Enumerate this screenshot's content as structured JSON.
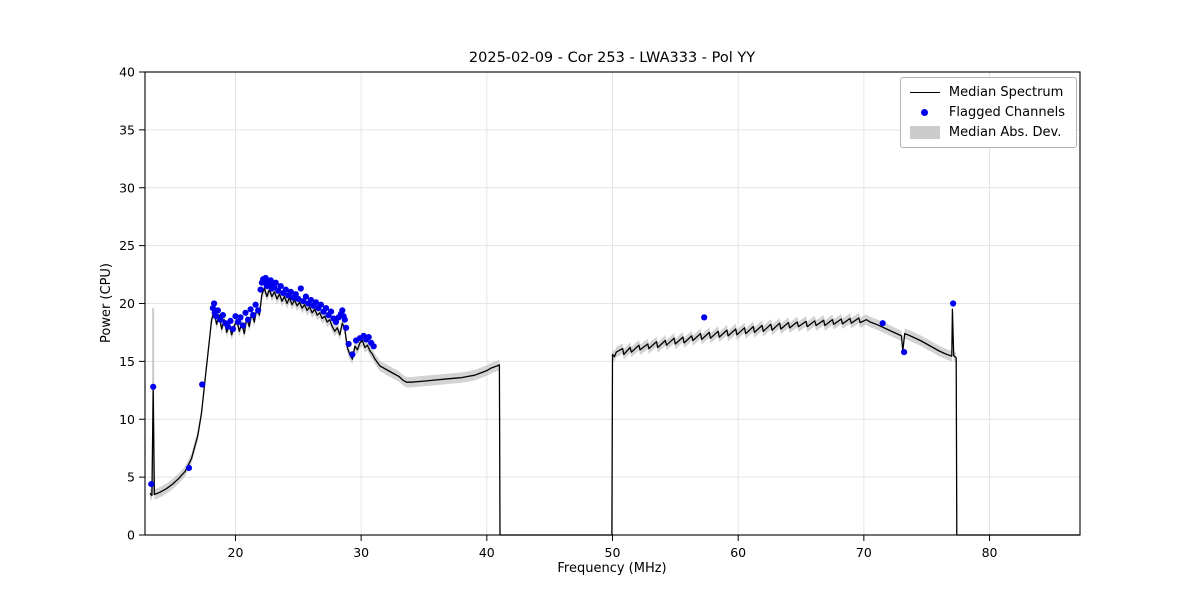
{
  "figure": {
    "title": "2025-02-09 - Cor 253 - LWA333 - Pol YY",
    "xlabel": "Frequency (MHz)",
    "ylabel": "Power (CPU)"
  },
  "legend": {
    "items": [
      {
        "label": "Median Spectrum",
        "swatch": "line-swatch",
        "color": "#000000"
      },
      {
        "label": "Flagged Channels",
        "swatch": "dot-swatch",
        "color": "#0000ee"
      },
      {
        "label": "Median Abs. Dev.",
        "swatch": "patch-swatch",
        "color": "#cccccc"
      }
    ]
  },
  "chart_data": {
    "type": "line",
    "title": "2025-02-09 - Cor 253 - LWA333 - Pol YY",
    "xlabel": "Frequency (MHz)",
    "ylabel": "Power (CPU)",
    "xlim": [
      12.8,
      87.2
    ],
    "ylim": [
      0,
      40
    ],
    "xticks": [
      20,
      30,
      40,
      50,
      60,
      70,
      80
    ],
    "yticks": [
      0,
      5,
      10,
      15,
      20,
      25,
      30,
      35,
      40
    ],
    "grid": true,
    "legend_position": "upper right",
    "line_color": "#000000",
    "point_color": "#0000ee",
    "band_color": "#c4c4c4",
    "band_halfwidth": 0.45,
    "mad_spike": {
      "x": 13.45,
      "y_bottom": 3.5,
      "y_top": 19.6
    },
    "series": [
      {
        "name": "Median Spectrum",
        "points": [
          [
            13.2,
            3.6
          ],
          [
            13.35,
            3.4
          ],
          [
            13.45,
            12.5
          ],
          [
            13.55,
            3.5
          ],
          [
            14.0,
            3.7
          ],
          [
            14.5,
            4.0
          ],
          [
            15.0,
            4.4
          ],
          [
            15.5,
            4.9
          ],
          [
            16.0,
            5.5
          ],
          [
            16.5,
            6.6
          ],
          [
            17.0,
            8.6
          ],
          [
            17.3,
            10.6
          ],
          [
            17.6,
            13.6
          ],
          [
            17.9,
            16.6
          ],
          [
            18.1,
            18.6
          ],
          [
            18.3,
            19.3
          ],
          [
            18.5,
            18.2
          ],
          [
            18.7,
            19.0
          ],
          [
            18.9,
            17.8
          ],
          [
            19.1,
            18.6
          ],
          [
            19.3,
            17.5
          ],
          [
            19.5,
            18.2
          ],
          [
            19.7,
            17.3
          ],
          [
            19.9,
            18.0
          ],
          [
            20.1,
            18.6
          ],
          [
            20.3,
            17.6
          ],
          [
            20.5,
            18.3
          ],
          [
            20.7,
            17.4
          ],
          [
            20.9,
            18.8
          ],
          [
            21.1,
            18.0
          ],
          [
            21.3,
            19.2
          ],
          [
            21.5,
            18.4
          ],
          [
            21.7,
            19.6
          ],
          [
            21.9,
            19.0
          ],
          [
            22.1,
            20.8
          ],
          [
            22.3,
            21.3
          ],
          [
            22.5,
            20.6
          ],
          [
            22.7,
            21.2
          ],
          [
            22.9,
            20.6
          ],
          [
            23.1,
            21.0
          ],
          [
            23.3,
            20.4
          ],
          [
            23.5,
            20.8
          ],
          [
            23.7,
            20.2
          ],
          [
            23.9,
            20.6
          ],
          [
            24.1,
            20.0
          ],
          [
            24.3,
            20.5
          ],
          [
            24.5,
            19.9
          ],
          [
            24.7,
            20.3
          ],
          [
            24.9,
            19.8
          ],
          [
            25.1,
            20.1
          ],
          [
            25.3,
            19.6
          ],
          [
            25.5,
            19.9
          ],
          [
            25.7,
            19.4
          ],
          [
            25.9,
            19.7
          ],
          [
            26.1,
            19.2
          ],
          [
            26.3,
            19.5
          ],
          [
            26.5,
            19.0
          ],
          [
            26.7,
            19.2
          ],
          [
            26.9,
            18.7
          ],
          [
            27.1,
            18.9
          ],
          [
            27.3,
            18.4
          ],
          [
            27.5,
            18.6
          ],
          [
            27.7,
            18.0
          ],
          [
            27.9,
            17.6
          ],
          [
            28.1,
            17.9
          ],
          [
            28.3,
            17.3
          ],
          [
            28.5,
            18.3
          ],
          [
            28.7,
            17.8
          ],
          [
            28.9,
            16.2
          ],
          [
            29.1,
            15.6
          ],
          [
            29.3,
            15.2
          ],
          [
            29.5,
            16.3
          ],
          [
            29.7,
            16.0
          ],
          [
            29.9,
            16.6
          ],
          [
            30.1,
            16.8
          ],
          [
            30.3,
            16.2
          ],
          [
            30.5,
            16.4
          ],
          [
            30.7,
            15.9
          ],
          [
            30.9,
            15.6
          ],
          [
            31.1,
            15.2
          ],
          [
            31.5,
            14.6
          ],
          [
            32.0,
            14.3
          ],
          [
            32.5,
            14.0
          ],
          [
            33.0,
            13.7
          ],
          [
            33.3,
            13.4
          ],
          [
            33.6,
            13.2
          ],
          [
            34.0,
            13.2
          ],
          [
            34.5,
            13.25
          ],
          [
            35.0,
            13.3
          ],
          [
            35.5,
            13.35
          ],
          [
            36.0,
            13.4
          ],
          [
            36.5,
            13.45
          ],
          [
            37.0,
            13.5
          ],
          [
            37.5,
            13.55
          ],
          [
            38.0,
            13.6
          ],
          [
            38.5,
            13.7
          ],
          [
            39.0,
            13.8
          ],
          [
            39.5,
            14.0
          ],
          [
            40.0,
            14.2
          ],
          [
            40.4,
            14.45
          ],
          [
            40.8,
            14.6
          ],
          [
            41.0,
            14.7
          ],
          [
            41.05,
            0.0
          ],
          [
            49.95,
            0.0
          ],
          [
            50.0,
            15.6
          ],
          [
            50.15,
            15.4
          ],
          [
            50.3,
            15.8
          ],
          [
            50.8,
            16.1
          ],
          [
            50.9,
            15.6
          ],
          [
            51.4,
            16.2
          ],
          [
            51.5,
            15.8
          ],
          [
            52.1,
            16.4
          ],
          [
            52.2,
            16.0
          ],
          [
            52.8,
            16.5
          ],
          [
            52.9,
            16.1
          ],
          [
            53.5,
            16.7
          ],
          [
            53.6,
            16.2
          ],
          [
            54.2,
            16.8
          ],
          [
            54.3,
            16.4
          ],
          [
            54.9,
            17.0
          ],
          [
            55.0,
            16.5
          ],
          [
            55.6,
            17.1
          ],
          [
            55.7,
            16.6
          ],
          [
            56.3,
            17.2
          ],
          [
            56.4,
            16.8
          ],
          [
            57.0,
            17.4
          ],
          [
            57.1,
            16.9
          ],
          [
            57.7,
            17.5
          ],
          [
            57.8,
            17.0
          ],
          [
            58.4,
            17.6
          ],
          [
            58.5,
            17.1
          ],
          [
            59.1,
            17.7
          ],
          [
            59.2,
            17.2
          ],
          [
            59.8,
            17.8
          ],
          [
            59.9,
            17.3
          ],
          [
            60.5,
            17.9
          ],
          [
            60.6,
            17.4
          ],
          [
            61.2,
            18.0
          ],
          [
            61.3,
            17.5
          ],
          [
            61.9,
            18.1
          ],
          [
            62.0,
            17.6
          ],
          [
            62.6,
            18.2
          ],
          [
            62.7,
            17.7
          ],
          [
            63.3,
            18.3
          ],
          [
            63.4,
            17.8
          ],
          [
            64.0,
            18.35
          ],
          [
            64.1,
            17.9
          ],
          [
            64.7,
            18.4
          ],
          [
            64.8,
            18.0
          ],
          [
            65.4,
            18.45
          ],
          [
            65.5,
            18.0
          ],
          [
            66.1,
            18.5
          ],
          [
            66.2,
            18.1
          ],
          [
            66.8,
            18.55
          ],
          [
            66.9,
            18.1
          ],
          [
            67.5,
            18.6
          ],
          [
            67.6,
            18.2
          ],
          [
            68.2,
            18.65
          ],
          [
            68.3,
            18.25
          ],
          [
            68.9,
            18.7
          ],
          [
            69.0,
            18.3
          ],
          [
            69.6,
            18.75
          ],
          [
            69.7,
            18.35
          ],
          [
            70.2,
            18.6
          ],
          [
            70.5,
            18.4
          ],
          [
            71.0,
            18.2
          ],
          [
            71.5,
            17.95
          ],
          [
            72.0,
            17.7
          ],
          [
            72.5,
            17.45
          ],
          [
            73.0,
            17.2
          ],
          [
            73.1,
            15.9
          ],
          [
            73.25,
            17.4
          ],
          [
            73.6,
            17.25
          ],
          [
            74.0,
            17.05
          ],
          [
            74.5,
            16.8
          ],
          [
            75.0,
            16.5
          ],
          [
            75.5,
            16.2
          ],
          [
            76.0,
            15.9
          ],
          [
            76.5,
            15.65
          ],
          [
            77.0,
            15.45
          ],
          [
            77.05,
            19.5
          ],
          [
            77.15,
            15.5
          ],
          [
            77.35,
            15.3
          ],
          [
            77.4,
            0.0
          ],
          [
            87.2,
            0.0
          ]
        ]
      },
      {
        "name": "Flagged Channels",
        "points": [
          [
            13.3,
            4.4
          ],
          [
            13.45,
            12.8
          ],
          [
            16.3,
            5.8
          ],
          [
            17.35,
            13.0
          ],
          [
            18.2,
            19.6
          ],
          [
            18.3,
            20.0
          ],
          [
            18.35,
            19.2
          ],
          [
            18.45,
            18.9
          ],
          [
            18.6,
            19.4
          ],
          [
            18.8,
            18.6
          ],
          [
            19.0,
            19.0
          ],
          [
            19.2,
            18.3
          ],
          [
            19.4,
            18.0
          ],
          [
            19.6,
            18.5
          ],
          [
            19.8,
            17.8
          ],
          [
            20.0,
            18.9
          ],
          [
            20.2,
            18.4
          ],
          [
            20.4,
            18.8
          ],
          [
            20.6,
            18.1
          ],
          [
            20.8,
            19.2
          ],
          [
            21.0,
            18.6
          ],
          [
            21.2,
            19.5
          ],
          [
            21.4,
            19.0
          ],
          [
            21.6,
            19.9
          ],
          [
            21.8,
            19.4
          ],
          [
            22.0,
            21.2
          ],
          [
            22.1,
            21.8
          ],
          [
            22.2,
            22.1
          ],
          [
            22.3,
            21.9
          ],
          [
            22.4,
            22.2
          ],
          [
            22.5,
            21.5
          ],
          [
            22.6,
            21.9
          ],
          [
            22.7,
            21.6
          ],
          [
            22.8,
            22.0
          ],
          [
            22.9,
            21.3
          ],
          [
            23.0,
            21.7
          ],
          [
            23.1,
            21.4
          ],
          [
            23.2,
            21.8
          ],
          [
            23.4,
            21.1
          ],
          [
            23.6,
            21.5
          ],
          [
            23.8,
            20.9
          ],
          [
            24.0,
            21.2
          ],
          [
            24.2,
            20.7
          ],
          [
            24.4,
            21.0
          ],
          [
            24.6,
            20.5
          ],
          [
            24.8,
            20.8
          ],
          [
            25.0,
            20.4
          ],
          [
            25.2,
            21.3
          ],
          [
            25.4,
            20.2
          ],
          [
            25.6,
            20.6
          ],
          [
            25.8,
            20.0
          ],
          [
            26.0,
            20.3
          ],
          [
            26.2,
            19.8
          ],
          [
            26.4,
            20.1
          ],
          [
            26.6,
            19.6
          ],
          [
            26.8,
            19.9
          ],
          [
            27.0,
            19.3
          ],
          [
            27.2,
            19.6
          ],
          [
            27.4,
            19.0
          ],
          [
            27.6,
            19.3
          ],
          [
            27.8,
            18.7
          ],
          [
            28.0,
            18.4
          ],
          [
            28.2,
            18.8
          ],
          [
            28.4,
            19.1
          ],
          [
            28.5,
            19.4
          ],
          [
            28.6,
            18.9
          ],
          [
            28.7,
            18.6
          ],
          [
            28.8,
            17.9
          ],
          [
            29.0,
            16.5
          ],
          [
            29.3,
            15.6
          ],
          [
            29.6,
            16.8
          ],
          [
            29.9,
            17.0
          ],
          [
            30.2,
            17.2
          ],
          [
            30.4,
            16.9
          ],
          [
            30.6,
            17.1
          ],
          [
            30.8,
            16.6
          ],
          [
            31.0,
            16.3
          ],
          [
            57.3,
            18.8
          ],
          [
            71.5,
            18.3
          ],
          [
            73.2,
            15.8
          ],
          [
            77.1,
            20.0
          ]
        ]
      }
    ]
  }
}
